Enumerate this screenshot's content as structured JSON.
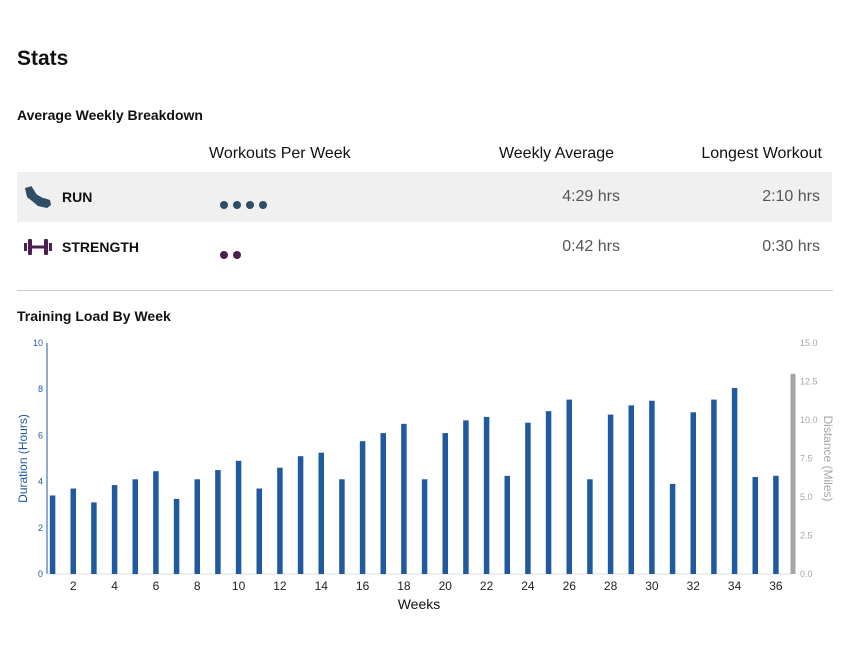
{
  "page": {
    "title": "Stats"
  },
  "breakdown": {
    "title": "Average Weekly Breakdown",
    "columns": {
      "workouts_per_week": "Workouts Per Week",
      "weekly_average": "Weekly Average",
      "longest_workout": "Longest Workout"
    },
    "rows": [
      {
        "name": "RUN",
        "icon": "shoe-icon",
        "workouts_per_week": 4,
        "dot_color": "#2f4d66",
        "weekly_average": "4:29 hrs",
        "longest_workout": "2:10 hrs"
      },
      {
        "name": "STRENGTH",
        "icon": "dumbbell-icon",
        "workouts_per_week": 2,
        "dot_color": "#4b1f4f",
        "weekly_average": "0:42 hrs",
        "longest_workout": "0:30 hrs"
      }
    ]
  },
  "training_load": {
    "title": "Training Load By Week"
  },
  "chart_data": {
    "type": "bar",
    "xlabel": "Weeks",
    "ylabel": "Duration (Hours)",
    "y2label": "Distance (Miles)",
    "ylim": [
      0,
      10
    ],
    "y2lim": [
      0,
      15
    ],
    "yticks": [
      "0",
      "2",
      "4",
      "6",
      "8",
      "10"
    ],
    "y2ticks": [
      "0.0",
      "2.5",
      "5.0",
      "7.5",
      "10.0",
      "12.5",
      "15.0"
    ],
    "xticks": [
      "2",
      "4",
      "6",
      "8",
      "10",
      "12",
      "14",
      "16",
      "18",
      "20",
      "22",
      "24",
      "26",
      "28",
      "30",
      "32",
      "34",
      "36"
    ],
    "bar_color": "#1f5aa0",
    "secondary_color": "#a6a6a6",
    "x": [
      1,
      2,
      3,
      4,
      5,
      6,
      7,
      8,
      9,
      10,
      11,
      12,
      13,
      14,
      15,
      16,
      17,
      18,
      19,
      20,
      21,
      22,
      23,
      24,
      25,
      26,
      27,
      28,
      29,
      30,
      31,
      32,
      33,
      34,
      35,
      36
    ],
    "values": [
      3.4,
      3.7,
      3.1,
      3.85,
      4.1,
      4.45,
      3.25,
      4.1,
      4.5,
      4.9,
      3.7,
      4.6,
      5.1,
      5.25,
      4.1,
      5.75,
      6.1,
      6.5,
      4.1,
      6.1,
      6.65,
      6.8,
      4.25,
      6.55,
      7.05,
      7.55,
      4.1,
      6.9,
      7.3,
      7.5,
      3.9,
      7.0,
      7.55,
      8.05,
      4.2,
      4.25
    ],
    "secondary_series": {
      "name": "Distance (Miles)",
      "x": [
        36
      ],
      "values": [
        13.0
      ]
    }
  }
}
